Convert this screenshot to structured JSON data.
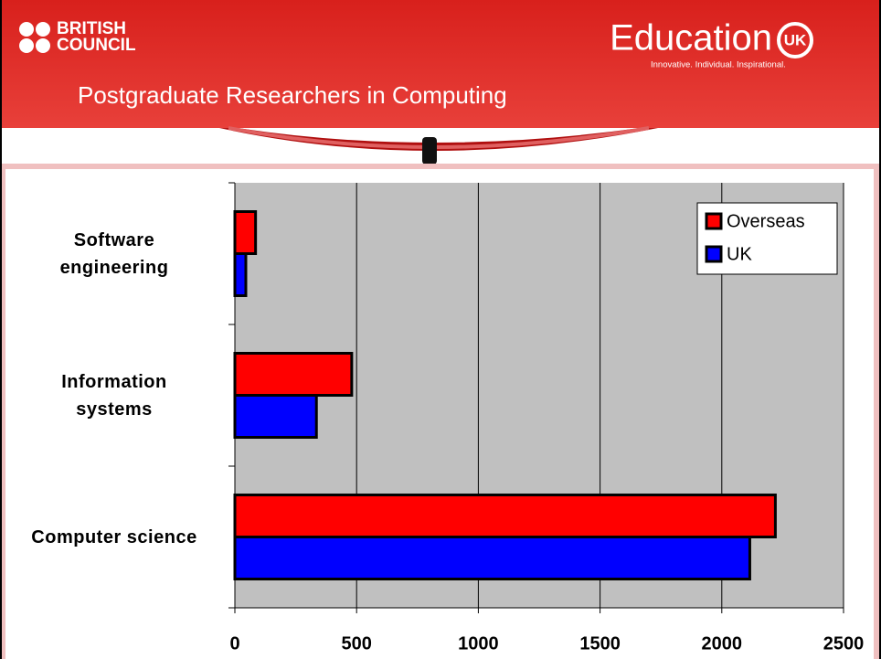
{
  "header": {
    "brand_left": "BRITISH\nCOUNCIL",
    "brand_right": "Education",
    "brand_right_badge": "UK",
    "tagline": "Innovative. Individual. Inspirational.",
    "title": "Postgraduate Researchers in Computing"
  },
  "chart_data": {
    "type": "hbar",
    "categories": [
      "Software\nengineering",
      "Information\nsystems",
      "Computer science"
    ],
    "series": [
      {
        "name": "Overseas",
        "color": "#ff0000",
        "values": [
          85,
          480,
          2220
        ]
      },
      {
        "name": "UK",
        "color": "#0000ff",
        "values": [
          45,
          335,
          2115
        ]
      }
    ],
    "xlim": [
      0,
      2500
    ],
    "xticks": [
      0,
      500,
      1000,
      1500,
      2000,
      2500
    ],
    "grid": true,
    "legend": "top-right"
  }
}
